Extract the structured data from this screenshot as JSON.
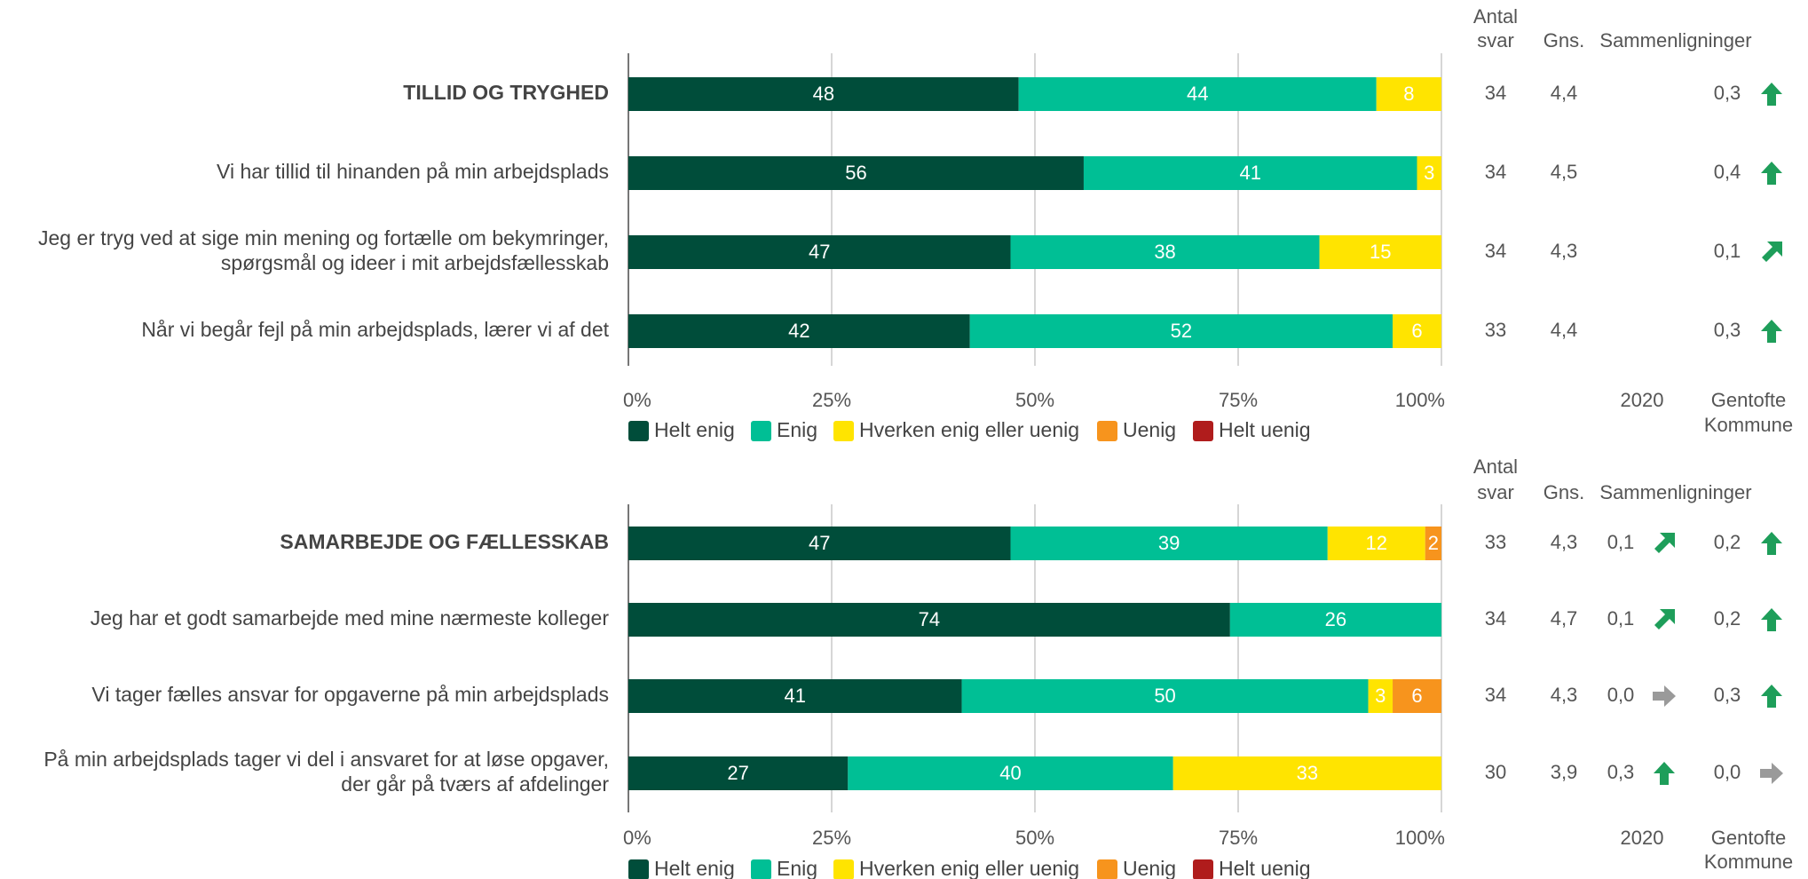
{
  "colors": {
    "helt_enig": "#004d3a",
    "enig": "#00bf95",
    "hverken": "#ffe400",
    "uenig": "#f7941d",
    "helt_uenig": "#b01c1c",
    "arrow_green": "#1e9e5a",
    "arrow_grey": "#9a9a9a"
  },
  "chart_data": [
    {
      "type": "bar",
      "orientation": "horizontal-stacked",
      "categories": [
        "TILLID OG TRYGHED",
        "Vi har tillid til hinanden på min arbejdsplads",
        "Jeg er tryg ved at sige min mening og fortælle om bekymringer, spørgsmål og ideer i mit arbejdsfællesskab",
        "Når vi begår fejl på min arbejdsplads, lærer vi af det"
      ],
      "series": [
        {
          "name": "Helt enig",
          "values": [
            48,
            56,
            47,
            42
          ]
        },
        {
          "name": "Enig",
          "values": [
            44,
            41,
            38,
            52
          ]
        },
        {
          "name": "Hverken enig eller uenig",
          "values": [
            8,
            3,
            15,
            6
          ]
        },
        {
          "name": "Uenig",
          "values": [
            0,
            0,
            0,
            0
          ]
        },
        {
          "name": "Helt uenig",
          "values": [
            0,
            0,
            0,
            0
          ]
        }
      ],
      "xlim": [
        0,
        100
      ],
      "x_ticks": [
        "0%",
        "25%",
        "50%",
        "75%",
        "100%"
      ],
      "legend": "bottom-left",
      "grid": true,
      "table": {
        "headers": {
          "antal": "Antal svar",
          "gns": "Gns.",
          "sammen": "Sammenligninger",
          "col1": "2020",
          "col2": "Gentofte Kommune"
        },
        "rows": [
          {
            "antal": "34",
            "gns": "4,4",
            "c1": "",
            "c1_arrow": "",
            "c2": "0,3",
            "c2_arrow": "up"
          },
          {
            "antal": "34",
            "gns": "4,5",
            "c1": "",
            "c1_arrow": "",
            "c2": "0,4",
            "c2_arrow": "up"
          },
          {
            "antal": "34",
            "gns": "4,3",
            "c1": "",
            "c1_arrow": "",
            "c2": "0,1",
            "c2_arrow": "diag"
          },
          {
            "antal": "33",
            "gns": "4,4",
            "c1": "",
            "c1_arrow": "",
            "c2": "0,3",
            "c2_arrow": "up"
          }
        ]
      }
    },
    {
      "type": "bar",
      "orientation": "horizontal-stacked",
      "categories": [
        "SAMARBEJDE OG FÆLLESSKAB",
        "Jeg har et godt samarbejde med mine nærmeste kolleger",
        "Vi tager fælles ansvar for opgaverne på min arbejdsplads",
        "På min arbejdsplads tager vi del i ansvaret for at løse opgaver, der går på tværs af afdelinger"
      ],
      "series": [
        {
          "name": "Helt enig",
          "values": [
            47,
            74,
            41,
            27
          ]
        },
        {
          "name": "Enig",
          "values": [
            39,
            26,
            50,
            40
          ]
        },
        {
          "name": "Hverken enig eller uenig",
          "values": [
            12,
            0,
            3,
            33
          ]
        },
        {
          "name": "Uenig",
          "values": [
            2,
            0,
            6,
            0
          ]
        },
        {
          "name": "Helt uenig",
          "values": [
            0,
            0,
            0,
            0
          ]
        }
      ],
      "xlim": [
        0,
        100
      ],
      "x_ticks": [
        "0%",
        "25%",
        "50%",
        "75%",
        "100%"
      ],
      "legend": "bottom-left",
      "grid": true,
      "table": {
        "headers": {
          "antal": "Antal svar",
          "gns": "Gns.",
          "sammen": "Sammenligninger",
          "col1": "2020",
          "col2": "Gentofte Kommune"
        },
        "rows": [
          {
            "antal": "33",
            "gns": "4,3",
            "c1": "0,1",
            "c1_arrow": "diag",
            "c2": "0,2",
            "c2_arrow": "up"
          },
          {
            "antal": "34",
            "gns": "4,7",
            "c1": "0,1",
            "c1_arrow": "diag",
            "c2": "0,2",
            "c2_arrow": "up"
          },
          {
            "antal": "34",
            "gns": "4,3",
            "c1": "0,0",
            "c1_arrow": "right",
            "c2": "0,3",
            "c2_arrow": "up"
          },
          {
            "antal": "30",
            "gns": "3,9",
            "c1": "0,3",
            "c1_arrow": "up",
            "c2": "0,0",
            "c2_arrow": "right"
          }
        ]
      }
    }
  ]
}
